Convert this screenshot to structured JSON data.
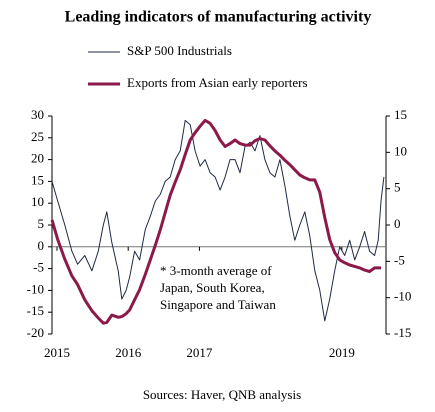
{
  "chart_data": {
    "type": "line",
    "title": "Leading indicators of manufacturing activity",
    "source": "Sources: Haver, QNB analysis",
    "annotation": [
      "* 3-month average of",
      "Japan, South Korea,",
      "Singapore and Taiwan"
    ],
    "annotation_color": "#8b1a4a",
    "x": [
      2014.93,
      2015.01,
      2015.11,
      2015.21,
      2015.29,
      2015.39,
      2015.49,
      2015.58,
      2015.65,
      2015.7,
      2015.77,
      2015.86,
      2015.91,
      2015.97,
      2016.02,
      2016.09,
      2016.16,
      2016.24,
      2016.31,
      2016.38,
      2016.45,
      2016.52,
      2016.59,
      2016.66,
      2016.73,
      2016.8,
      2016.87,
      2016.94,
      2017.01,
      2017.08,
      2017.15,
      2017.22,
      2017.29,
      2017.36,
      2017.43,
      2017.5,
      2017.57,
      2017.64,
      2017.71,
      2017.78,
      2017.85,
      2017.92,
      2017.99,
      2018.06,
      2018.13,
      2018.2,
      2018.27,
      2018.34,
      2018.41,
      2018.48,
      2018.55,
      2018.62,
      2018.69,
      2018.76,
      2018.83,
      2018.9,
      2018.97,
      2019.04,
      2019.11,
      2019.18,
      2019.25,
      2019.32,
      2019.39,
      2019.46,
      2019.51,
      2019.55,
      2019.59
    ],
    "series": [
      {
        "name": "S&P 500 Industrials",
        "color": "#1f2a44",
        "axis": "y",
        "values": [
          15,
          10.5,
          5,
          -1,
          -4,
          -2,
          -5.5,
          -1,
          5,
          8,
          1,
          -5.5,
          -12,
          -10,
          -7,
          -1,
          -3,
          4,
          7,
          10.5,
          12,
          15,
          16,
          20,
          22,
          29,
          28,
          22,
          18.5,
          20,
          17,
          16,
          13,
          16,
          20,
          20,
          17,
          23,
          24,
          22,
          25.5,
          20,
          17,
          16,
          20,
          14,
          7,
          1.5,
          5,
          8,
          2.5,
          -5.5,
          -10,
          -17,
          -12,
          -5.5,
          0,
          -2,
          1.5,
          -3,
          0,
          3.5,
          -1,
          -2,
          1.5,
          10.5,
          16
        ]
      },
      {
        "name": "Exports from Asian early reporters",
        "color": "#8b1a4a",
        "axis": "y2",
        "values": [
          0.7,
          -2,
          -4.7,
          -7,
          -8.2,
          -10.3,
          -11.8,
          -12.8,
          -13.5,
          -13.4,
          -12.4,
          -12.7,
          -12.6,
          -12.2,
          -11.7,
          -10.3,
          -8.9,
          -6.8,
          -4.8,
          -2.8,
          -0.7,
          1.7,
          4.1,
          5.9,
          7.6,
          9.7,
          11.7,
          12.7,
          13.6,
          14.4,
          14,
          13,
          11.7,
          10.8,
          11.2,
          11.7,
          11.2,
          11,
          11,
          11.6,
          11.9,
          11.7,
          10.9,
          10.2,
          9.6,
          8.9,
          8.3,
          7.6,
          6.9,
          6.5,
          6.2,
          6.2,
          4.5,
          1,
          -2,
          -3.8,
          -4.8,
          -5.2,
          -5.5,
          -5.7,
          -5.9,
          -6.2,
          -6.4,
          -5.9,
          -5.9,
          -5.9,
          null
        ]
      }
    ],
    "xlim": [
      2014.93,
      2019.62
    ],
    "xticks": [
      2015,
      2016,
      2017,
      2019
    ],
    "ylim": [
      -20,
      30
    ],
    "yticks": [
      30,
      25,
      20,
      15,
      10,
      5,
      0,
      -5,
      -10,
      -15,
      -20
    ],
    "y2lim": [
      -15,
      15
    ],
    "y2ticks": [
      15,
      10,
      5,
      0,
      -5,
      -10,
      -15
    ],
    "legend": "top-left",
    "grid": false
  }
}
